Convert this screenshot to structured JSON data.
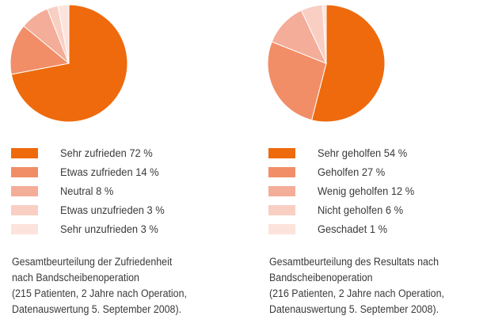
{
  "chart_data": [
    {
      "type": "pie",
      "title": "Gesamtbeurteilung der Zufriedenheit nach Bandscheibenoperation",
      "categories": [
        "Sehr zufrieden",
        "Etwas zufrieden",
        "Neutral",
        "Etwas unzufrieden",
        "Sehr unzufrieden"
      ],
      "values": [
        72,
        14,
        8,
        3,
        3
      ],
      "unit": "%",
      "colors": [
        "#ee6a0c",
        "#f18e68",
        "#f4ad98",
        "#f9cfc3",
        "#fce4dc"
      ],
      "legend": [
        {
          "label": "Sehr zufrieden 72 %"
        },
        {
          "label": "Etwas zufrieden 14 %"
        },
        {
          "label": "Neutral 8 %"
        },
        {
          "label": "Etwas unzufrieden 3 %"
        },
        {
          "label": "Sehr unzufrieden 3 %"
        }
      ],
      "caption_lines": [
        "Gesamtbeurteilung der Zufriedenheit",
        "nach Bandscheibenoperation",
        "(215 Patienten, 2 Jahre nach Operation,",
        "Datenauswertung 5. September 2008)."
      ]
    },
    {
      "type": "pie",
      "title": "Gesamtbeurteilung des Resultats nach Bandscheibenoperation",
      "categories": [
        "Sehr geholfen",
        "Geholfen",
        "Wenig geholfen",
        "Nicht geholfen",
        "Geschadet"
      ],
      "values": [
        54,
        27,
        12,
        6,
        1
      ],
      "unit": "%",
      "colors": [
        "#ee6a0c",
        "#f18e68",
        "#f4ad98",
        "#f9cfc3",
        "#fce4dc"
      ],
      "legend": [
        {
          "label": "Sehr geholfen 54 %"
        },
        {
          "label": "Geholfen 27 %"
        },
        {
          "label": "Wenig geholfen 12 %"
        },
        {
          "label": "Nicht geholfen 6 %"
        },
        {
          "label": "Geschadet 1 %"
        }
      ],
      "caption_lines": [
        "Gesamtbeurteilung des Resultats nach",
        "Bandscheibenoperation",
        "(216 Patienten, 2 Jahre nach Operation,",
        "Datenauswertung 5. September 2008)."
      ]
    }
  ]
}
